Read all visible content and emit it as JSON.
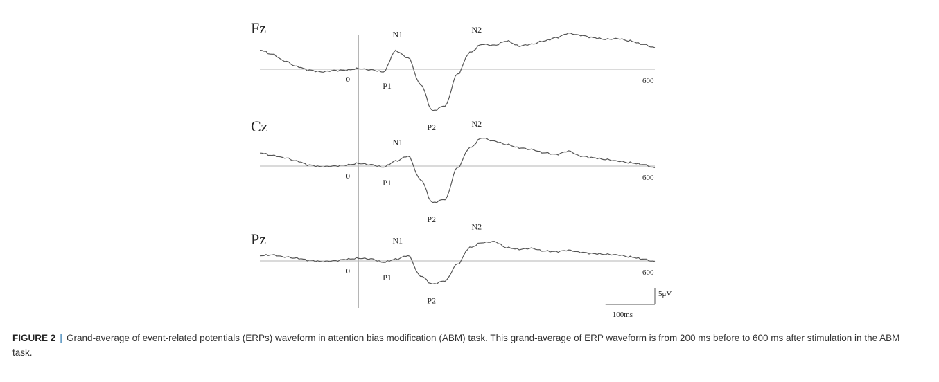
{
  "figure": {
    "label": "FIGURE 2",
    "separator": "|",
    "caption": "Grand-average of event-related potentials (ERPs) waveform in attention bias modification (ABM) task. This grand-average of ERP waveform is from 200 ms before to 600 ms after stimulation in the ABM task."
  },
  "chart_data": {
    "type": "line",
    "x_unit": "ms",
    "xlim": [
      -200,
      600
    ],
    "zero_label": "0",
    "end_label": "600",
    "y_polarity": "negative-up",
    "scale_bar": {
      "voltage": 5,
      "voltage_label": "5μV",
      "time": 100,
      "time_label": "100ms"
    },
    "x": [
      -200,
      -175,
      -150,
      -125,
      -100,
      -75,
      -50,
      -25,
      0,
      25,
      50,
      75,
      100,
      125,
      150,
      175,
      200,
      225,
      250,
      275,
      300,
      325,
      350,
      375,
      400,
      425,
      450,
      475,
      500,
      525,
      550,
      575,
      600
    ],
    "channels": [
      {
        "name": "Fz",
        "values": [
          -5.8,
          -4.5,
          -2.5,
          -0.8,
          0.3,
          0.8,
          0.4,
          0.3,
          -0.2,
          0.2,
          0.8,
          -5.5,
          -3.5,
          4.5,
          12.5,
          11.0,
          1.5,
          -5.0,
          -7.5,
          -7.2,
          -8.5,
          -7.0,
          -7.5,
          -8.5,
          -9.5,
          -10.8,
          -10.2,
          -9.5,
          -9.0,
          -9.2,
          -8.5,
          -7.5,
          -6.5
        ],
        "peaks": [
          {
            "name": "P1",
            "x": 60,
            "position": "below"
          },
          {
            "name": "N1",
            "x": 80,
            "position": "above"
          },
          {
            "name": "P2",
            "x": 150,
            "position": "below"
          },
          {
            "name": "N2",
            "x": 240,
            "position": "above"
          }
        ]
      },
      {
        "name": "Cz",
        "values": [
          -4.0,
          -3.2,
          -2.5,
          -1.5,
          -0.3,
          0.2,
          0.0,
          -0.3,
          -0.8,
          -0.4,
          0.3,
          -1.5,
          -3.0,
          4.0,
          11.0,
          10.0,
          0.5,
          -5.5,
          -8.5,
          -7.5,
          -6.5,
          -5.5,
          -5.0,
          -4.0,
          -3.5,
          -4.5,
          -3.0,
          -2.5,
          -2.0,
          -1.5,
          -1.0,
          -0.5,
          0.5
        ],
        "peaks": [
          {
            "name": "P1",
            "x": 60,
            "position": "below"
          },
          {
            "name": "N1",
            "x": 80,
            "position": "above"
          },
          {
            "name": "P2",
            "x": 150,
            "position": "below"
          },
          {
            "name": "N2",
            "x": 240,
            "position": "above"
          }
        ]
      },
      {
        "name": "Pz",
        "values": [
          -1.6,
          -1.8,
          -1.2,
          -0.8,
          -0.2,
          0.2,
          0.0,
          -0.5,
          -0.8,
          -0.6,
          0.4,
          -0.5,
          -1.6,
          4.5,
          7.0,
          6.0,
          1.0,
          -4.0,
          -5.5,
          -5.8,
          -4.0,
          -3.5,
          -3.8,
          -3.0,
          -2.8,
          -3.2,
          -2.6,
          -2.2,
          -2.0,
          -1.8,
          -1.2,
          -0.6,
          0.2
        ],
        "peaks": [
          {
            "name": "P1",
            "x": 60,
            "position": "below"
          },
          {
            "name": "N1",
            "x": 80,
            "position": "above"
          },
          {
            "name": "P2",
            "x": 150,
            "position": "below"
          },
          {
            "name": "N2",
            "x": 240,
            "position": "above"
          }
        ]
      }
    ]
  }
}
